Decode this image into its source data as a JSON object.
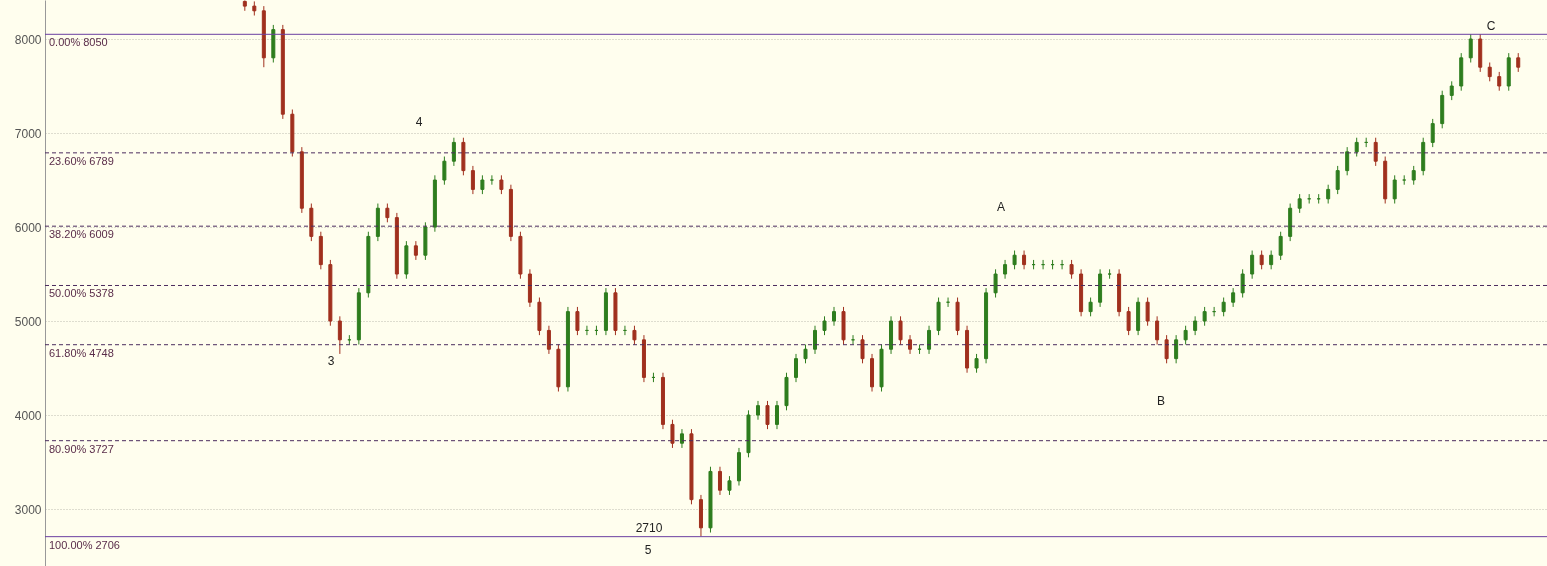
{
  "chart_data": {
    "type": "candlestick",
    "categories": [
      null,
      null,
      null,
      null,
      null,
      null,
      null,
      null,
      null,
      null,
      null,
      null,
      null,
      null,
      null,
      null,
      null,
      null,
      null,
      null,
      null,
      null,
      null,
      null,
      null,
      null,
      null,
      null,
      null,
      null,
      null,
      null,
      null,
      null,
      null,
      null,
      null,
      null,
      null,
      null,
      null,
      null,
      null,
      null,
      null,
      null,
      null,
      null,
      null,
      null,
      null,
      null,
      null,
      null,
      null,
      null,
      null,
      null,
      null,
      null,
      null,
      null,
      null,
      null,
      null,
      null,
      null,
      null,
      null,
      null,
      null,
      null,
      null,
      null,
      null,
      null,
      null,
      null,
      null,
      null,
      null,
      null,
      null,
      null,
      null,
      null,
      null,
      null,
      null,
      null,
      null,
      null,
      null,
      null,
      null,
      null,
      null,
      null,
      null,
      null,
      null,
      null,
      null,
      null,
      null,
      null,
      null,
      null,
      null,
      null,
      null,
      null,
      null,
      null,
      null,
      null,
      null,
      null,
      null,
      null,
      null,
      null,
      null,
      null,
      null,
      null,
      null,
      null,
      null,
      null,
      null,
      null,
      null,
      null,
      null,
      null,
      null,
      null,
      null,
      null,
      null,
      null,
      null,
      null,
      null,
      null,
      null,
      null,
      null,
      null,
      null,
      null,
      null,
      null,
      null,
      null,
      null
    ],
    "ohlc": [
      null,
      null,
      null,
      null,
      null,
      null,
      null,
      null,
      null,
      null,
      null,
      null,
      null,
      null,
      null,
      null,
      null,
      null,
      null,
      null,
      [
        8400,
        8410,
        8300,
        8350
      ],
      [
        8350,
        8400,
        8250,
        8300
      ],
      [
        8300,
        8350,
        7700,
        7800
      ],
      [
        7800,
        8150,
        7750,
        8100
      ],
      [
        8100,
        8150,
        7150,
        7200
      ],
      [
        7200,
        7250,
        6750,
        6800
      ],
      [
        6800,
        6850,
        6150,
        6200
      ],
      [
        6200,
        6250,
        5850,
        5900
      ],
      [
        5900,
        5950,
        5550,
        5600
      ],
      [
        5600,
        5650,
        4950,
        5000
      ],
      [
        5000,
        5050,
        4650,
        4800
      ],
      [
        4800,
        4850,
        4750,
        4800
      ],
      [
        4800,
        5350,
        4750,
        5300
      ],
      [
        5300,
        5950,
        5250,
        5900
      ],
      [
        5900,
        6250,
        5850,
        6200
      ],
      [
        6200,
        6250,
        6050,
        6100
      ],
      [
        6100,
        6150,
        5450,
        5500
      ],
      [
        5500,
        5850,
        5450,
        5800
      ],
      [
        5800,
        5850,
        5650,
        5700
      ],
      [
        5700,
        6050,
        5650,
        6000
      ],
      [
        6000,
        6550,
        5950,
        6500
      ],
      [
        6500,
        6750,
        6450,
        6700
      ],
      [
        6700,
        6950,
        6650,
        6900
      ],
      [
        6900,
        6950,
        6550,
        6600
      ],
      [
        6600,
        6650,
        6350,
        6400
      ],
      [
        6400,
        6550,
        6350,
        6500
      ],
      [
        6500,
        6550,
        6450,
        6500
      ],
      [
        6500,
        6550,
        6350,
        6400
      ],
      [
        6400,
        6450,
        5850,
        5900
      ],
      [
        5900,
        5950,
        5450,
        5500
      ],
      [
        5500,
        5550,
        5150,
        5200
      ],
      [
        5200,
        5250,
        4850,
        4900
      ],
      [
        4900,
        4950,
        4650,
        4700
      ],
      [
        4700,
        4750,
        4250,
        4300
      ],
      [
        4300,
        5150,
        4250,
        5100
      ],
      [
        5100,
        5150,
        4850,
        4900
      ],
      [
        4900,
        4950,
        4850,
        4900
      ],
      [
        4900,
        4950,
        4850,
        4900
      ],
      [
        4900,
        5350,
        4850,
        5300
      ],
      [
        5300,
        5350,
        4850,
        4900
      ],
      [
        4900,
        4950,
        4850,
        4900
      ],
      [
        4900,
        4950,
        4750,
        4800
      ],
      [
        4800,
        4850,
        4350,
        4400
      ],
      [
        4400,
        4450,
        4350,
        4400
      ],
      [
        4400,
        4450,
        3850,
        3900
      ],
      [
        3900,
        3950,
        3650,
        3700
      ],
      [
        3700,
        3850,
        3650,
        3800
      ],
      [
        3800,
        3850,
        3050,
        3100
      ],
      [
        3100,
        3150,
        2710,
        2800
      ],
      [
        2800,
        3450,
        2750,
        3400
      ],
      [
        3400,
        3450,
        3150,
        3200
      ],
      [
        3200,
        3350,
        3150,
        3300
      ],
      [
        3300,
        3650,
        3250,
        3600
      ],
      [
        3600,
        4050,
        3550,
        4000
      ],
      [
        4000,
        4150,
        3950,
        4100
      ],
      [
        4100,
        4150,
        3850,
        3900
      ],
      [
        3900,
        4150,
        3850,
        4100
      ],
      [
        4100,
        4450,
        4050,
        4400
      ],
      [
        4400,
        4650,
        4350,
        4600
      ],
      [
        4600,
        4750,
        4550,
        4700
      ],
      [
        4700,
        4950,
        4650,
        4900
      ],
      [
        4900,
        5050,
        4850,
        5000
      ],
      [
        5000,
        5150,
        4950,
        5100
      ],
      [
        5100,
        5150,
        4750,
        4800
      ],
      [
        4800,
        4850,
        4750,
        4800
      ],
      [
        4800,
        4850,
        4550,
        4600
      ],
      [
        4600,
        4650,
        4250,
        4300
      ],
      [
        4300,
        4750,
        4250,
        4700
      ],
      [
        4700,
        5050,
        4650,
        5000
      ],
      [
        5000,
        5050,
        4750,
        4800
      ],
      [
        4800,
        4850,
        4650,
        4700
      ],
      [
        4700,
        4750,
        4650,
        4700
      ],
      [
        4700,
        4950,
        4650,
        4900
      ],
      [
        4900,
        5250,
        4850,
        5200
      ],
      [
        5200,
        5250,
        5150,
        5200
      ],
      [
        5200,
        5250,
        4850,
        4900
      ],
      [
        4900,
        4950,
        4450,
        4500
      ],
      [
        4500,
        4650,
        4450,
        4600
      ],
      [
        4600,
        5350,
        4550,
        5300
      ],
      [
        5300,
        5550,
        5250,
        5500
      ],
      [
        5500,
        5650,
        5450,
        5600
      ],
      [
        5600,
        5750,
        5550,
        5700
      ],
      [
        5700,
        5750,
        5550,
        5600
      ],
      [
        5600,
        5650,
        5550,
        5600
      ],
      [
        5600,
        5650,
        5550,
        5600
      ],
      [
        5600,
        5650,
        5550,
        5600
      ],
      [
        5600,
        5650,
        5550,
        5600
      ],
      [
        5600,
        5650,
        5450,
        5500
      ],
      [
        5500,
        5550,
        5050,
        5100
      ],
      [
        5100,
        5250,
        5050,
        5200
      ],
      [
        5200,
        5550,
        5150,
        5500
      ],
      [
        5500,
        5550,
        5450,
        5500
      ],
      [
        5500,
        5550,
        5050,
        5100
      ],
      [
        5100,
        5150,
        4850,
        4900
      ],
      [
        4900,
        5250,
        4850,
        5200
      ],
      [
        5200,
        5250,
        4950,
        5000
      ],
      [
        5000,
        5050,
        4750,
        4800
      ],
      [
        4800,
        4850,
        4550,
        4600
      ],
      [
        4600,
        4850,
        4550,
        4800
      ],
      [
        4800,
        4950,
        4750,
        4900
      ],
      [
        4900,
        5050,
        4850,
        5000
      ],
      [
        5000,
        5150,
        4950,
        5100
      ],
      [
        5100,
        5150,
        5050,
        5100
      ],
      [
        5100,
        5250,
        5050,
        5200
      ],
      [
        5200,
        5350,
        5150,
        5300
      ],
      [
        5300,
        5550,
        5250,
        5500
      ],
      [
        5500,
        5750,
        5450,
        5700
      ],
      [
        5700,
        5750,
        5550,
        5600
      ],
      [
        5600,
        5750,
        5550,
        5700
      ],
      [
        5700,
        5950,
        5650,
        5900
      ],
      [
        5900,
        6250,
        5850,
        6200
      ],
      [
        6200,
        6350,
        6150,
        6300
      ],
      [
        6300,
        6350,
        6250,
        6300
      ],
      [
        6300,
        6350,
        6250,
        6300
      ],
      [
        6300,
        6450,
        6250,
        6400
      ],
      [
        6400,
        6650,
        6350,
        6600
      ],
      [
        6600,
        6850,
        6550,
        6800
      ],
      [
        6800,
        6950,
        6750,
        6900
      ],
      [
        6900,
        6950,
        6850,
        6900
      ],
      [
        6900,
        6950,
        6650,
        6700
      ],
      [
        6700,
        6750,
        6250,
        6300
      ],
      [
        6300,
        6550,
        6250,
        6500
      ],
      [
        6500,
        6550,
        6450,
        6500
      ],
      [
        6500,
        6650,
        6450,
        6600
      ],
      [
        6600,
        6950,
        6550,
        6900
      ],
      [
        6900,
        7150,
        6850,
        7100
      ],
      [
        7100,
        7450,
        7050,
        7400
      ],
      [
        7400,
        7550,
        7350,
        7500
      ],
      [
        7500,
        7850,
        7450,
        7800
      ],
      [
        7800,
        8050,
        7750,
        8000
      ],
      [
        8000,
        8050,
        7650,
        7700
      ],
      [
        7700,
        7750,
        7550,
        7600
      ],
      [
        7600,
        7650,
        7450,
        7500
      ],
      [
        7500,
        7850,
        7450,
        7800
      ],
      [
        7800,
        7850,
        7650,
        7700
      ],
      null,
      null
    ],
    "ylim": [
      2394,
      8415
    ],
    "yticks": [
      3000,
      4000,
      5000,
      6000,
      7000,
      8000
    ],
    "grid": "y",
    "ref_lines": [
      {
        "axis": "y",
        "value": 8050,
        "label": "0.00% 8050",
        "color": "#6b3fa0",
        "line_style": "solid"
      },
      {
        "axis": "y",
        "value": 6789,
        "label": "23.60% 6789",
        "color": "#4b2c5e",
        "line_style": "dashed"
      },
      {
        "axis": "y",
        "value": 6009,
        "label": "38.20% 6009",
        "color": "#4b2c5e",
        "line_style": "dashed"
      },
      {
        "axis": "y",
        "value": 5378,
        "label": "50.00% 5378",
        "color": "#4b2c5e",
        "line_style": "dashed"
      },
      {
        "axis": "y",
        "value": 4748,
        "label": "61.80% 4748",
        "color": "#4b2c5e",
        "line_style": "dashed"
      },
      {
        "axis": "y",
        "value": 3727,
        "label": "80.90% 3727",
        "color": "#4b2c5e",
        "line_style": "dashed"
      },
      {
        "axis": "y",
        "value": 2706,
        "label": "100.00% 2706",
        "color": "#6b3fa0",
        "line_style": "solid"
      }
    ],
    "annotations": [
      "3",
      "4",
      "2710",
      "5",
      "A",
      "B",
      "C"
    ]
  }
}
